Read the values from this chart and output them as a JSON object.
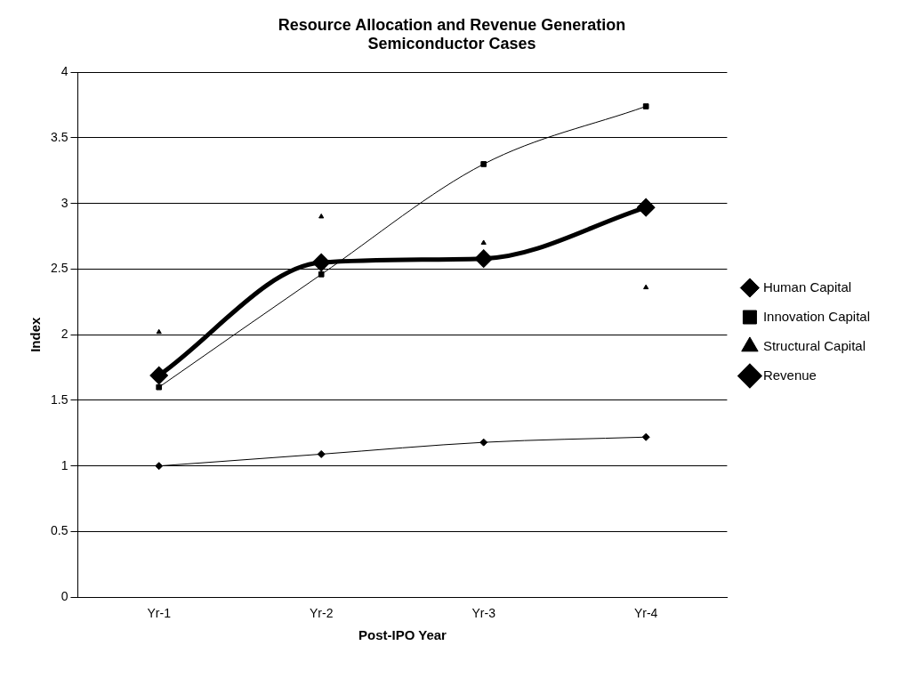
{
  "chart_data": {
    "type": "line",
    "title": "Resource Allocation and Revenue Generation\nSemiconductor Cases",
    "xlabel": "Post-IPO Year",
    "ylabel": "Index",
    "categories": [
      "Yr-1",
      "Yr-2",
      "Yr-3",
      "Yr-4"
    ],
    "series": [
      {
        "name": "Human Capital",
        "color": "#000000",
        "marker": "diamond",
        "values": [
          1.0,
          1.09,
          1.18,
          1.22
        ]
      },
      {
        "name": "Innovation Capital",
        "color": "#000000",
        "marker": "square",
        "values": [
          1.6,
          2.46,
          3.3,
          3.74
        ]
      },
      {
        "name": "Structural Capital",
        "color": "#000000",
        "type": "scatter",
        "marker": "triangle",
        "values": [
          2.02,
          2.9,
          2.7,
          2.36
        ]
      },
      {
        "name": "Revenue",
        "color": "#000000",
        "marker": "diamond",
        "values": [
          1.69,
          2.55,
          2.58,
          2.97
        ]
      }
    ],
    "ylim": [
      0,
      4
    ],
    "yticks": [
      0,
      0.5,
      1,
      1.5,
      2,
      2.5,
      3,
      3.5,
      4
    ],
    "grid": "y",
    "legend": "right"
  }
}
